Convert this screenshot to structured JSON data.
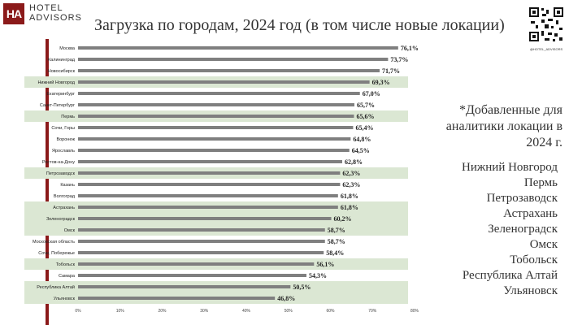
{
  "header": {
    "logo_initials": "HA",
    "logo_line1": "HOTEL",
    "logo_line2": "ADVISORS",
    "title": "Загрузка по городам, 2024 год (в том числе новые локации)",
    "qr_caption": "@HOTEL_ADVISORS"
  },
  "side_panel": {
    "note": "*Добавленные для аналитики локации в 2024 г.",
    "added_locations": [
      "Нижний Новгород",
      "Пермь",
      "Петрозаводск",
      "Астрахань",
      "Зеленоградск",
      "Омск",
      "Тобольск",
      "Республика Алтай",
      "Ульяновск"
    ]
  },
  "colors": {
    "brand_red": "#8b1a1a",
    "bar": "#7f7f7f",
    "highlight_band": "#dbe7d3"
  },
  "chart_data": {
    "type": "bar",
    "orientation": "horizontal",
    "title": "Загрузка по городам, 2024 год (в том числе новые локации)",
    "categories": [
      "Москва",
      "Калининград",
      "Новосибирск",
      "Нижний Новгород",
      "Екатеринбург",
      "Санкт-Петербург",
      "Пермь",
      "Сочи, Горы",
      "Воронеж",
      "Ярославль",
      "Ростов-на-Дону",
      "Петрозаводск",
      "Казань",
      "Волгоград",
      "Астрахань",
      "Зеленоградск",
      "Омск",
      "Московская область",
      "Сочи, Побережье",
      "Тобольск",
      "Самара",
      "Республика Алтай",
      "Ульяновск"
    ],
    "values": [
      76.1,
      73.7,
      71.7,
      69.3,
      67.0,
      65.7,
      65.6,
      65.4,
      64.8,
      64.5,
      62.8,
      62.3,
      62.3,
      61.8,
      61.8,
      60.2,
      58.7,
      58.7,
      58.4,
      56.1,
      54.3,
      50.5,
      46.8
    ],
    "value_labels": [
      "76,1%",
      "73,7%",
      "71,7%",
      "69,3%",
      "67,0%",
      "65,7%",
      "65,6%",
      "65,4%",
      "64,8%",
      "64,5%",
      "62,8%",
      "62,3%",
      "62,3%",
      "61,8%",
      "61,8%",
      "60,2%",
      "58,7%",
      "58,7%",
      "58,4%",
      "56,1%",
      "54,3%",
      "50,5%",
      "46,8%"
    ],
    "highlighted": [
      false,
      false,
      false,
      true,
      false,
      false,
      true,
      false,
      false,
      false,
      false,
      true,
      false,
      false,
      true,
      true,
      true,
      false,
      false,
      true,
      false,
      true,
      true
    ],
    "xlim": [
      0,
      80
    ],
    "x_ticks": [
      "0%",
      "10%",
      "20%",
      "30%",
      "40%",
      "50%",
      "60%",
      "70%",
      "80%"
    ],
    "grid": false,
    "legend": "none"
  }
}
